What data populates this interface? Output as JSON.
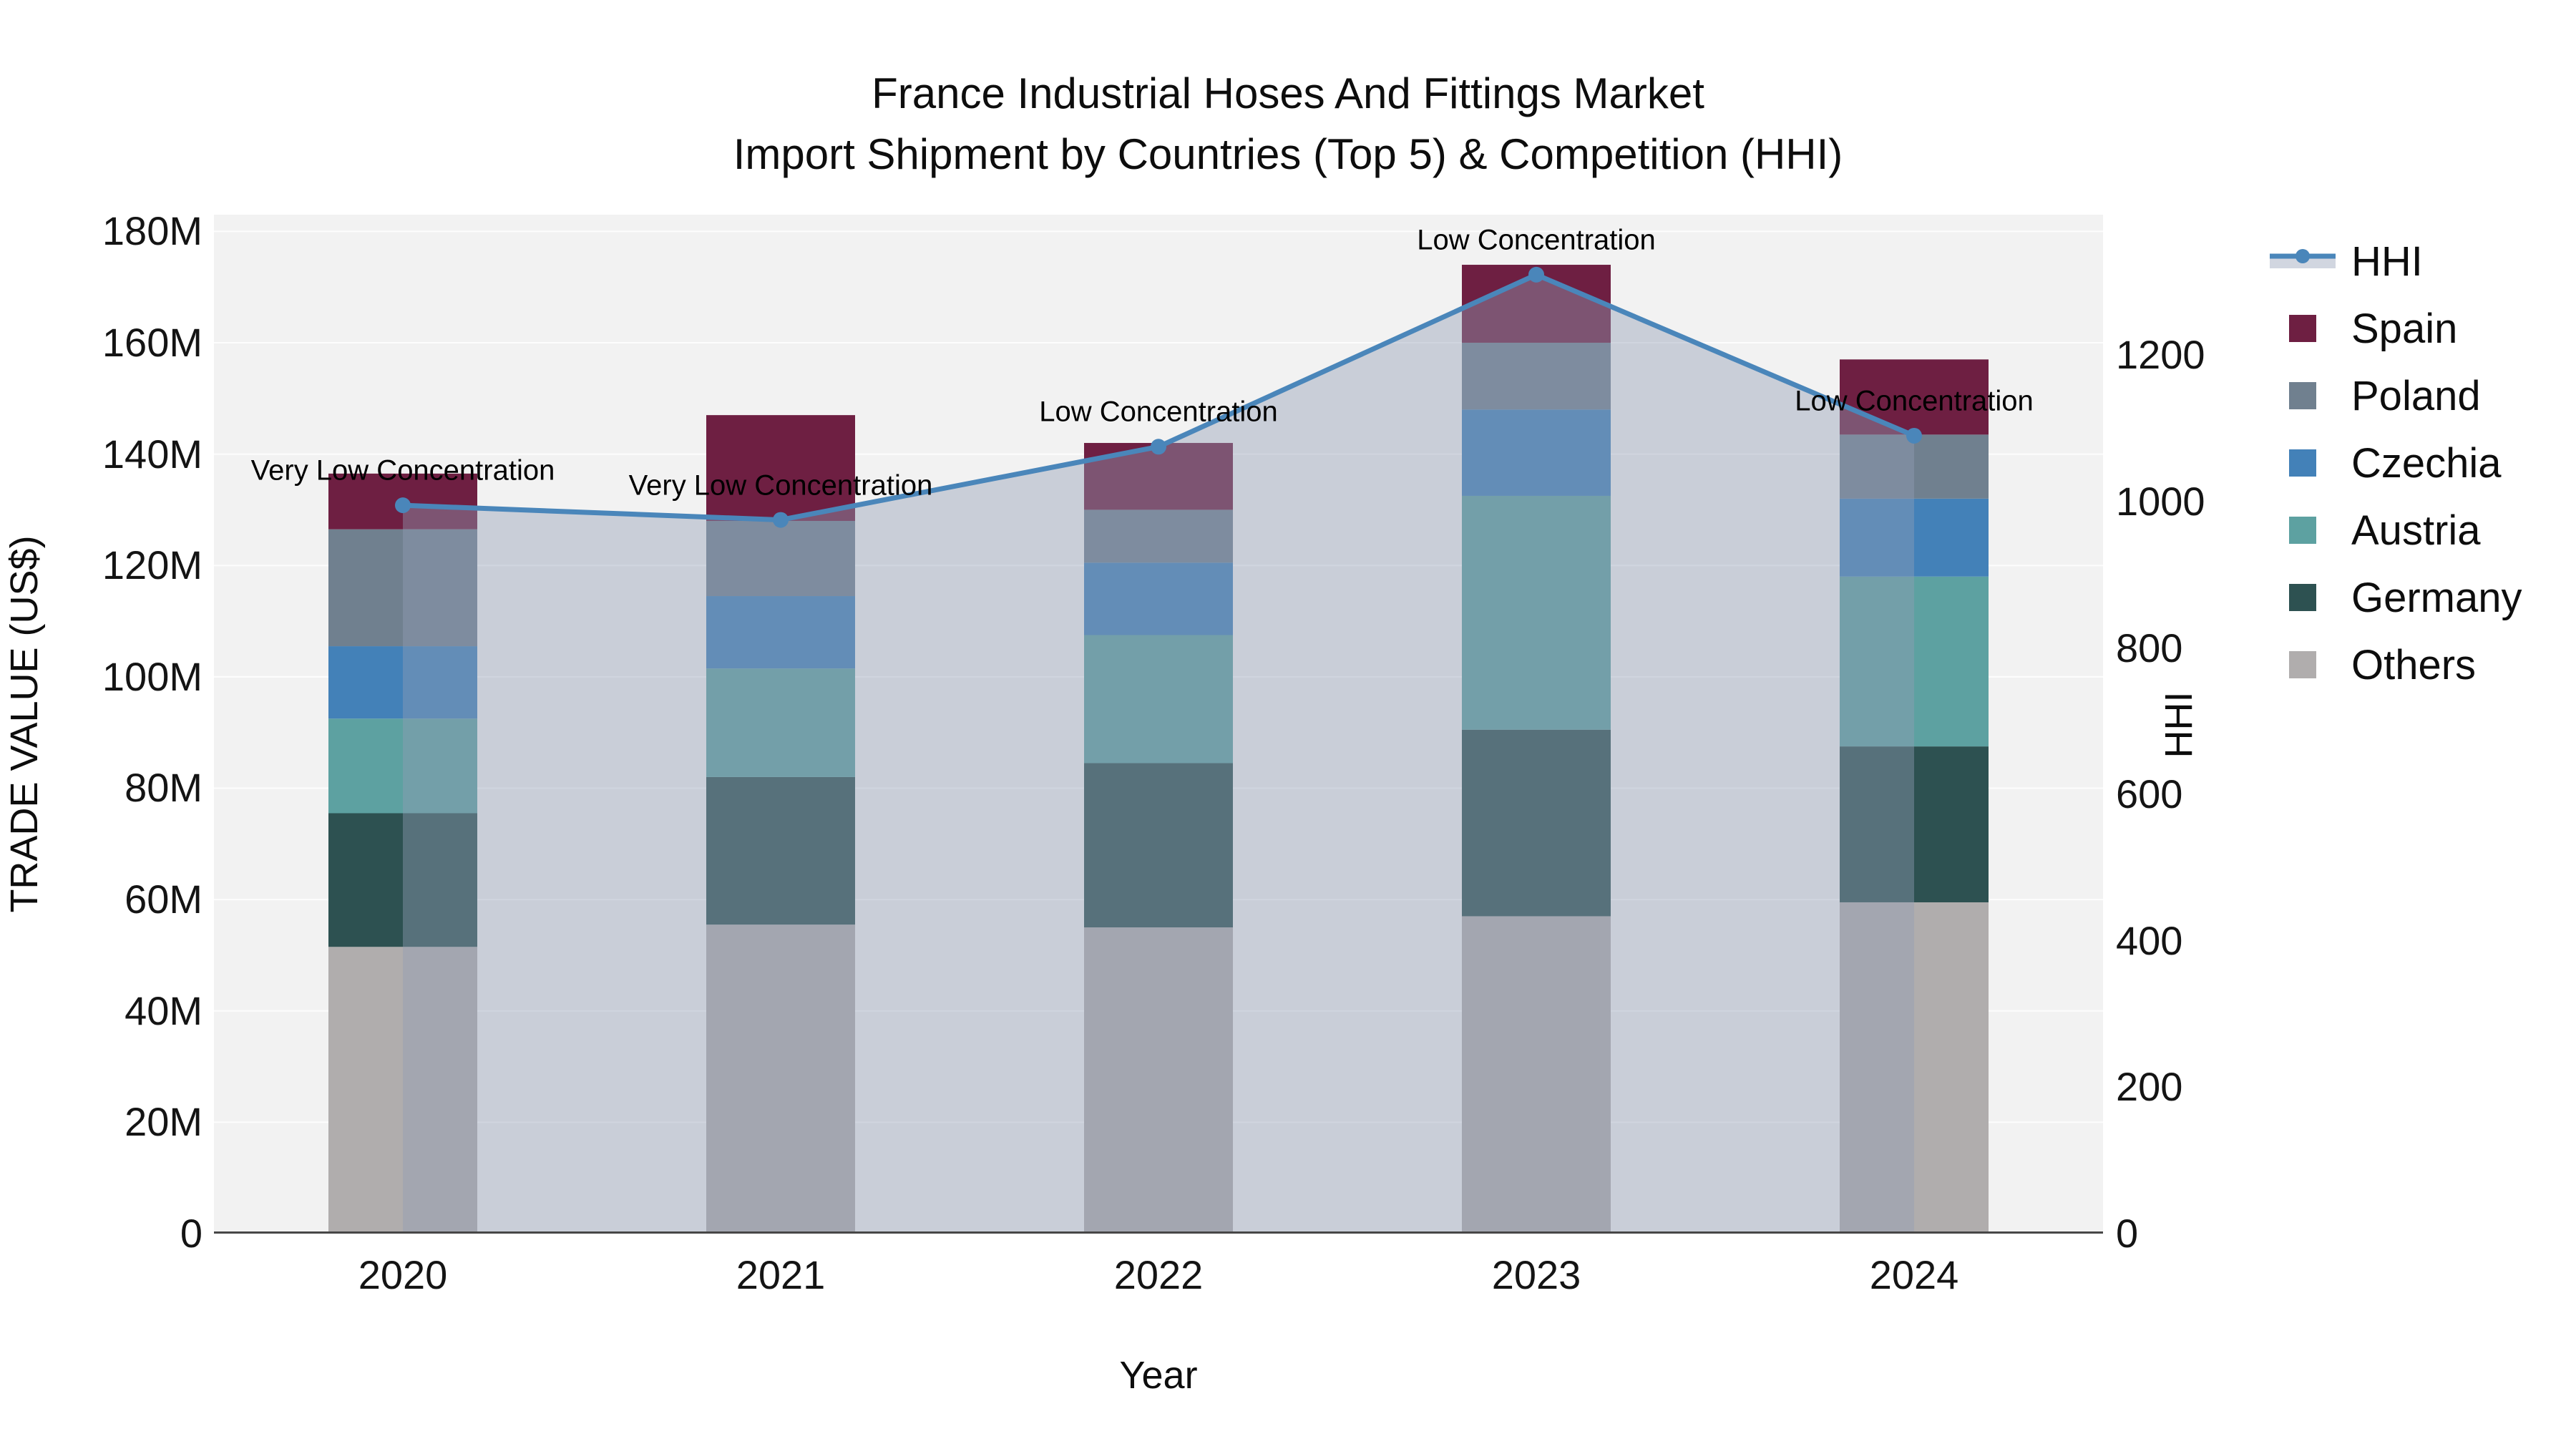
{
  "title": {
    "line1": "France Industrial Hoses And Fittings Market",
    "line2": "Import Shipment by Countries (Top 5) & Competition (HHI)"
  },
  "axes": {
    "left": {
      "title": "TRADE VALUE (US$)",
      "tick_labels": [
        "0",
        "20M",
        "40M",
        "60M",
        "80M",
        "100M",
        "120M",
        "140M",
        "160M",
        "180M"
      ],
      "tick_values": [
        0,
        20,
        40,
        60,
        80,
        100,
        120,
        140,
        160,
        180
      ]
    },
    "right": {
      "title": "HHI",
      "tick_labels": [
        "0",
        "200",
        "400",
        "600",
        "800",
        "1000",
        "1200"
      ],
      "tick_values": [
        0,
        200,
        400,
        600,
        800,
        1000,
        1200
      ]
    },
    "x": {
      "title": "Year",
      "categories": [
        "2020",
        "2021",
        "2022",
        "2023",
        "2024"
      ]
    }
  },
  "legend": {
    "items": [
      {
        "label": "HHI",
        "type": "line",
        "color": "#4a86ba"
      },
      {
        "label": "Spain",
        "type": "swatch",
        "color": "#6e1f42"
      },
      {
        "label": "Poland",
        "type": "swatch",
        "color": "#70808f"
      },
      {
        "label": "Czechia",
        "type": "swatch",
        "color": "#4381b8"
      },
      {
        "label": "Austria",
        "type": "swatch",
        "color": "#5da1a1"
      },
      {
        "label": "Germany",
        "type": "swatch",
        "color": "#2d5151"
      },
      {
        "label": "Others",
        "type": "swatch",
        "color": "#b0adad"
      }
    ]
  },
  "chart_data": {
    "type": "bar",
    "subtype": "stacked-bars-with-line-overlay",
    "title": "France Industrial Hoses And Fittings Market — Import Shipment by Countries (Top 5) & Competition (HHI)",
    "xlabel": "Year",
    "ylabel_left": "TRADE VALUE (US$)",
    "ylabel_right": "HHI",
    "unit": "US$ millions",
    "categories": [
      "2020",
      "2021",
      "2022",
      "2023",
      "2024"
    ],
    "series": [
      {
        "name": "Others",
        "color": "#b0adad",
        "values": [
          51.5,
          55.5,
          55.0,
          57.0,
          59.5
        ]
      },
      {
        "name": "Germany",
        "color": "#2d5151",
        "values": [
          24.0,
          26.5,
          29.5,
          33.5,
          28.0
        ]
      },
      {
        "name": "Austria",
        "color": "#5da1a1",
        "values": [
          17.0,
          19.5,
          23.0,
          42.0,
          30.5
        ]
      },
      {
        "name": "Czechia",
        "color": "#4381b8",
        "values": [
          13.0,
          13.0,
          13.0,
          15.5,
          14.0
        ]
      },
      {
        "name": "Poland",
        "color": "#70808f",
        "values": [
          21.0,
          13.5,
          9.5,
          12.0,
          11.5
        ]
      },
      {
        "name": "Spain",
        "color": "#6e1f42",
        "values": [
          10.0,
          19.0,
          12.0,
          14.0,
          13.5
        ]
      }
    ],
    "totals": [
      136.5,
      147.0,
      142.0,
      174.0,
      157.0
    ],
    "line": {
      "name": "HHI",
      "color": "#4a86ba",
      "fill_color": "rgba(145,157,181,0.42)",
      "values": [
        995,
        975,
        1075,
        1310,
        1090
      ]
    },
    "annotations": [
      {
        "category": "2020",
        "text": "Very Low Concentration"
      },
      {
        "category": "2021",
        "text": "Very Low Concentration"
      },
      {
        "category": "2022",
        "text": "Low Concentration"
      },
      {
        "category": "2023",
        "text": "Low Concentration"
      },
      {
        "category": "2024",
        "text": "Low Concentration"
      }
    ],
    "ylim_left": [
      0,
      183
    ],
    "ylim_right": [
      0,
      1392
    ],
    "grid": true,
    "plot_bg": "#f2f2f2",
    "grid_color": "#ffffff",
    "axisline_color": "#474747",
    "legend_position": "right"
  }
}
